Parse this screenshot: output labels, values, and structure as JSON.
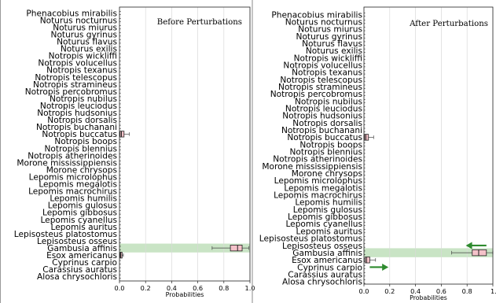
{
  "chart_data": [
    {
      "type": "boxplot",
      "panel_title": "Before Perturbations",
      "xlabel": "Probabilities",
      "xlim": [
        0,
        1
      ],
      "xticks": [
        "0.0",
        "0.2",
        "0.4",
        "0.6",
        "0.8",
        "1.0"
      ],
      "grid": "vertical",
      "highlight_category": "Gambusia affinis",
      "highlight_color": "#c9e4c5",
      "box_color": "#f4c2c9",
      "categories": [
        "Phenacobius mirabilis",
        "Noturus nocturnus",
        "Noturus miurus",
        "Noturus gyrinus",
        "Noturus flavus",
        "Noturus exilis",
        "Notropis wickliffi",
        "Notropis volucellus",
        "Notropis texanus",
        "Notropis telescopus",
        "Notropis stramineus",
        "Notropis percobromus",
        "Notropis nubilus",
        "Notropis leuciodus",
        "Notropis hudsonius",
        "Notropis dorsalis",
        "Notropis buchanani",
        "Notropis buccatus",
        "Notropis boops",
        "Notropis blennius",
        "Notropis atherinoides",
        "Morone mississippiensis",
        "Morone chrysops",
        "Lepomis microlophus",
        "Lepomis megalotis",
        "Lepomis macrochirus",
        "Lepomis humilis",
        "Lepomis gulosus",
        "Lepomis gibbosus",
        "Lepomis cyanellus",
        "Lepomis auritus",
        "Lepisosteus platostomus",
        "Lepisosteus osseus",
        "Gambusia affinis",
        "Esox americanus",
        "Cyprinus carpio",
        "Carassius auratus",
        "Alosa chrysochloris"
      ],
      "boxes": [
        {
          "category": "Notropis buccatus",
          "whislo": 0.0,
          "q1": 0.005,
          "med": 0.015,
          "q3": 0.035,
          "whishi": 0.075
        },
        {
          "category": "Gambusia affinis",
          "whislo": 0.71,
          "q1": 0.85,
          "med": 0.905,
          "q3": 0.94,
          "whishi": 0.99
        },
        {
          "category": "Esox americanus",
          "whislo": 0.0,
          "q1": 0.005,
          "med": 0.01,
          "q3": 0.02,
          "whishi": 0.03
        }
      ]
    },
    {
      "type": "boxplot",
      "panel_title": "After Perturbations",
      "xlabel": "Probabilities",
      "xlim": [
        0,
        1
      ],
      "xticks": [
        "0.0",
        "0.2",
        "0.4",
        "0.6",
        "0.8",
        "1."
      ],
      "grid": "vertical",
      "highlight_category": "Gambusia affinis",
      "highlight_color": "#c9e4c5",
      "box_color": "#f4c2c9",
      "arrow_color": "#2e8b2e",
      "arrows": [
        {
          "category": "Lepisosteus osseus",
          "direction": "left"
        },
        {
          "category": "Cyprinus carpio",
          "direction": "right"
        }
      ],
      "categories": [
        "Phenacobius mirabilis",
        "Noturus nocturnus",
        "Noturus miurus",
        "Noturus gyrinus",
        "Noturus flavus",
        "Noturus exilis",
        "Notropis wickliffi",
        "Notropis volucellus",
        "Notropis texanus",
        "Notropis telescopus",
        "Notropis stramineus",
        "Notropis percobromus",
        "Notropis nubilus",
        "Notropis leuciodus",
        "Notropis hudsonius",
        "Notropis dorsalis",
        "Notropis buchanani",
        "Notropis buccatus",
        "Notropis boops",
        "Notropis blennius",
        "Notropis atherinoides",
        "Morone mississippiensis",
        "Morone chrysops",
        "Lepomis microlophus",
        "Lepomis megalotis",
        "Lepomis macrochirus",
        "Lepomis humilis",
        "Lepomis gulosus",
        "Lepomis gibbosus",
        "Lepomis cyanellus",
        "Lepomis auritus",
        "Lepisosteus platostomus",
        "Lepisosteus osseus",
        "Gambusia affinis",
        "Esox americanus",
        "Cyprinus carpio",
        "Carassius auratus",
        "Alosa chrysochloris"
      ],
      "boxes": [
        {
          "category": "Notropis buccatus",
          "whislo": 0.0,
          "q1": 0.005,
          "med": 0.015,
          "q3": 0.035,
          "whishi": 0.075
        },
        {
          "category": "Gambusia affinis",
          "whislo": 0.68,
          "q1": 0.84,
          "med": 0.89,
          "q3": 0.95,
          "whishi": 1.0
        },
        {
          "category": "Esox americanus",
          "whislo": 0.0,
          "q1": 0.01,
          "med": 0.02,
          "q3": 0.045,
          "whishi": 0.09
        }
      ]
    }
  ]
}
